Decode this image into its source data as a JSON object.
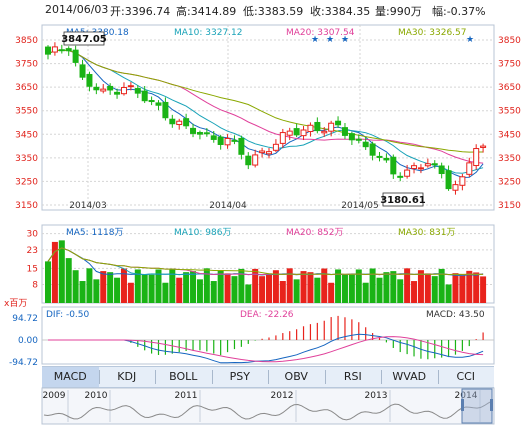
{
  "header": {
    "date": "2014/06/03",
    "open": "开:3396.74",
    "high": "高:3414.89",
    "low": "低:3383.59",
    "close": "收:3384.35",
    "volume": "量:990万",
    "change": "幅:-0.37%"
  },
  "price_panel": {
    "ma_labels": [
      {
        "key": "MA5",
        "text": "MA5: 3380.18",
        "color": "#1565c0"
      },
      {
        "key": "MA10",
        "text": "MA10: 3327.12",
        "color": "#1aa3b8"
      },
      {
        "key": "MA20",
        "text": "MA20: 3307.54",
        "color": "#e0409a"
      },
      {
        "key": "MA30",
        "text": "MA30: 3326.57",
        "color": "#8aa800"
      }
    ],
    "y_ticks": [
      "3850",
      "3750",
      "3650",
      "3550",
      "3450",
      "3350",
      "3250",
      "3150"
    ],
    "x_ticks": [
      "2014/03",
      "2014/04",
      "2014/05"
    ],
    "high_label": "3847.05",
    "low_label": "3180.61"
  },
  "volume_panel": {
    "ma_labels": [
      {
        "key": "MA5",
        "text": "MA5: 1118万",
        "color": "#1565c0"
      },
      {
        "key": "MA10",
        "text": "MA10: 986万",
        "color": "#1aa3b8"
      },
      {
        "key": "MA20",
        "text": "MA20: 852万",
        "color": "#e0409a"
      },
      {
        "key": "MA30",
        "text": "MA30: 831万",
        "color": "#8aa800"
      }
    ],
    "y_ticks": [
      "30",
      "23",
      "15",
      "8"
    ],
    "unit": "x百万"
  },
  "macd_panel": {
    "dif": "DIF: -0.50",
    "dea": "DEA: -22.26",
    "macd": "MACD: 43.50",
    "y_ticks": [
      "94.72",
      "0.00",
      "-94.72"
    ]
  },
  "tabs": [
    "MACD",
    "KDJ",
    "BOLL",
    "PSY",
    "OBV",
    "RSI",
    "WVAD",
    "CCI"
  ],
  "active_tab": "MACD",
  "timeline": {
    "years": [
      "2009",
      "2010",
      "2011",
      "2012",
      "2013",
      "2014"
    ]
  },
  "colors": {
    "up": "#e8231c",
    "down": "#1ab315",
    "grid": "#d5d5d5",
    "axis_red": "#e0231c"
  },
  "chart_data": {
    "type": "candlestick",
    "y_range": [
      3150,
      3850
    ],
    "x_ticks": [
      "2014/03",
      "2014/04",
      "2014/05"
    ],
    "last_bar": {
      "date": "2014/06/03",
      "open": 3396.74,
      "high": 3414.89,
      "low": 3383.59,
      "close": 3384.35,
      "volume_wan": 990
    },
    "high_marker": 3847.05,
    "low_marker": 3180.61,
    "moving_averages": {
      "MA5": 3380.18,
      "MA10": 3327.12,
      "MA20": 3307.54,
      "MA30": 3326.57
    },
    "volume_ma": {
      "MA5": "1118万",
      "MA10": "986万",
      "MA20": "852万",
      "MA30": "831万"
    },
    "macd": {
      "DIF": -0.5,
      "DEA": -22.26,
      "MACD": 43.5
    },
    "volume_y_ticks": [
      30,
      23,
      15,
      8
    ],
    "macd_y_range": [
      -94.72,
      94.72
    ]
  }
}
